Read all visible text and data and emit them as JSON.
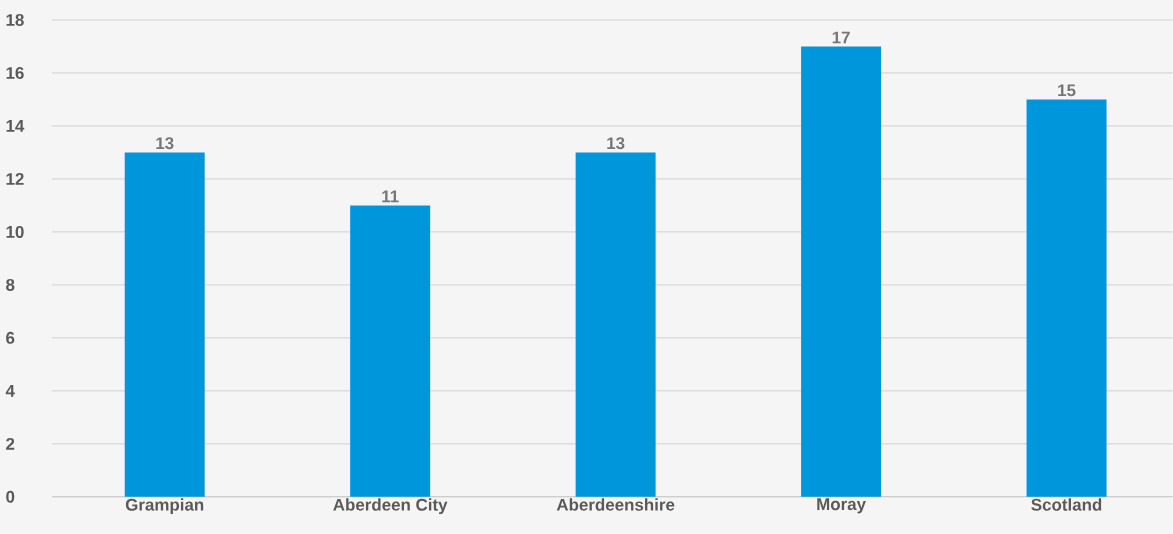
{
  "chart_data": {
    "type": "bar",
    "categories": [
      "Grampian",
      "Aberdeen City",
      "Aberdeenshire",
      "Moray",
      "Scotland"
    ],
    "values": [
      13,
      11,
      13,
      17,
      15
    ],
    "color": "#0096db",
    "ylim": [
      0,
      18
    ],
    "yticks": [
      0,
      2,
      4,
      6,
      8,
      10,
      12,
      14,
      16,
      18
    ],
    "grid": "y",
    "data_labels": true
  }
}
